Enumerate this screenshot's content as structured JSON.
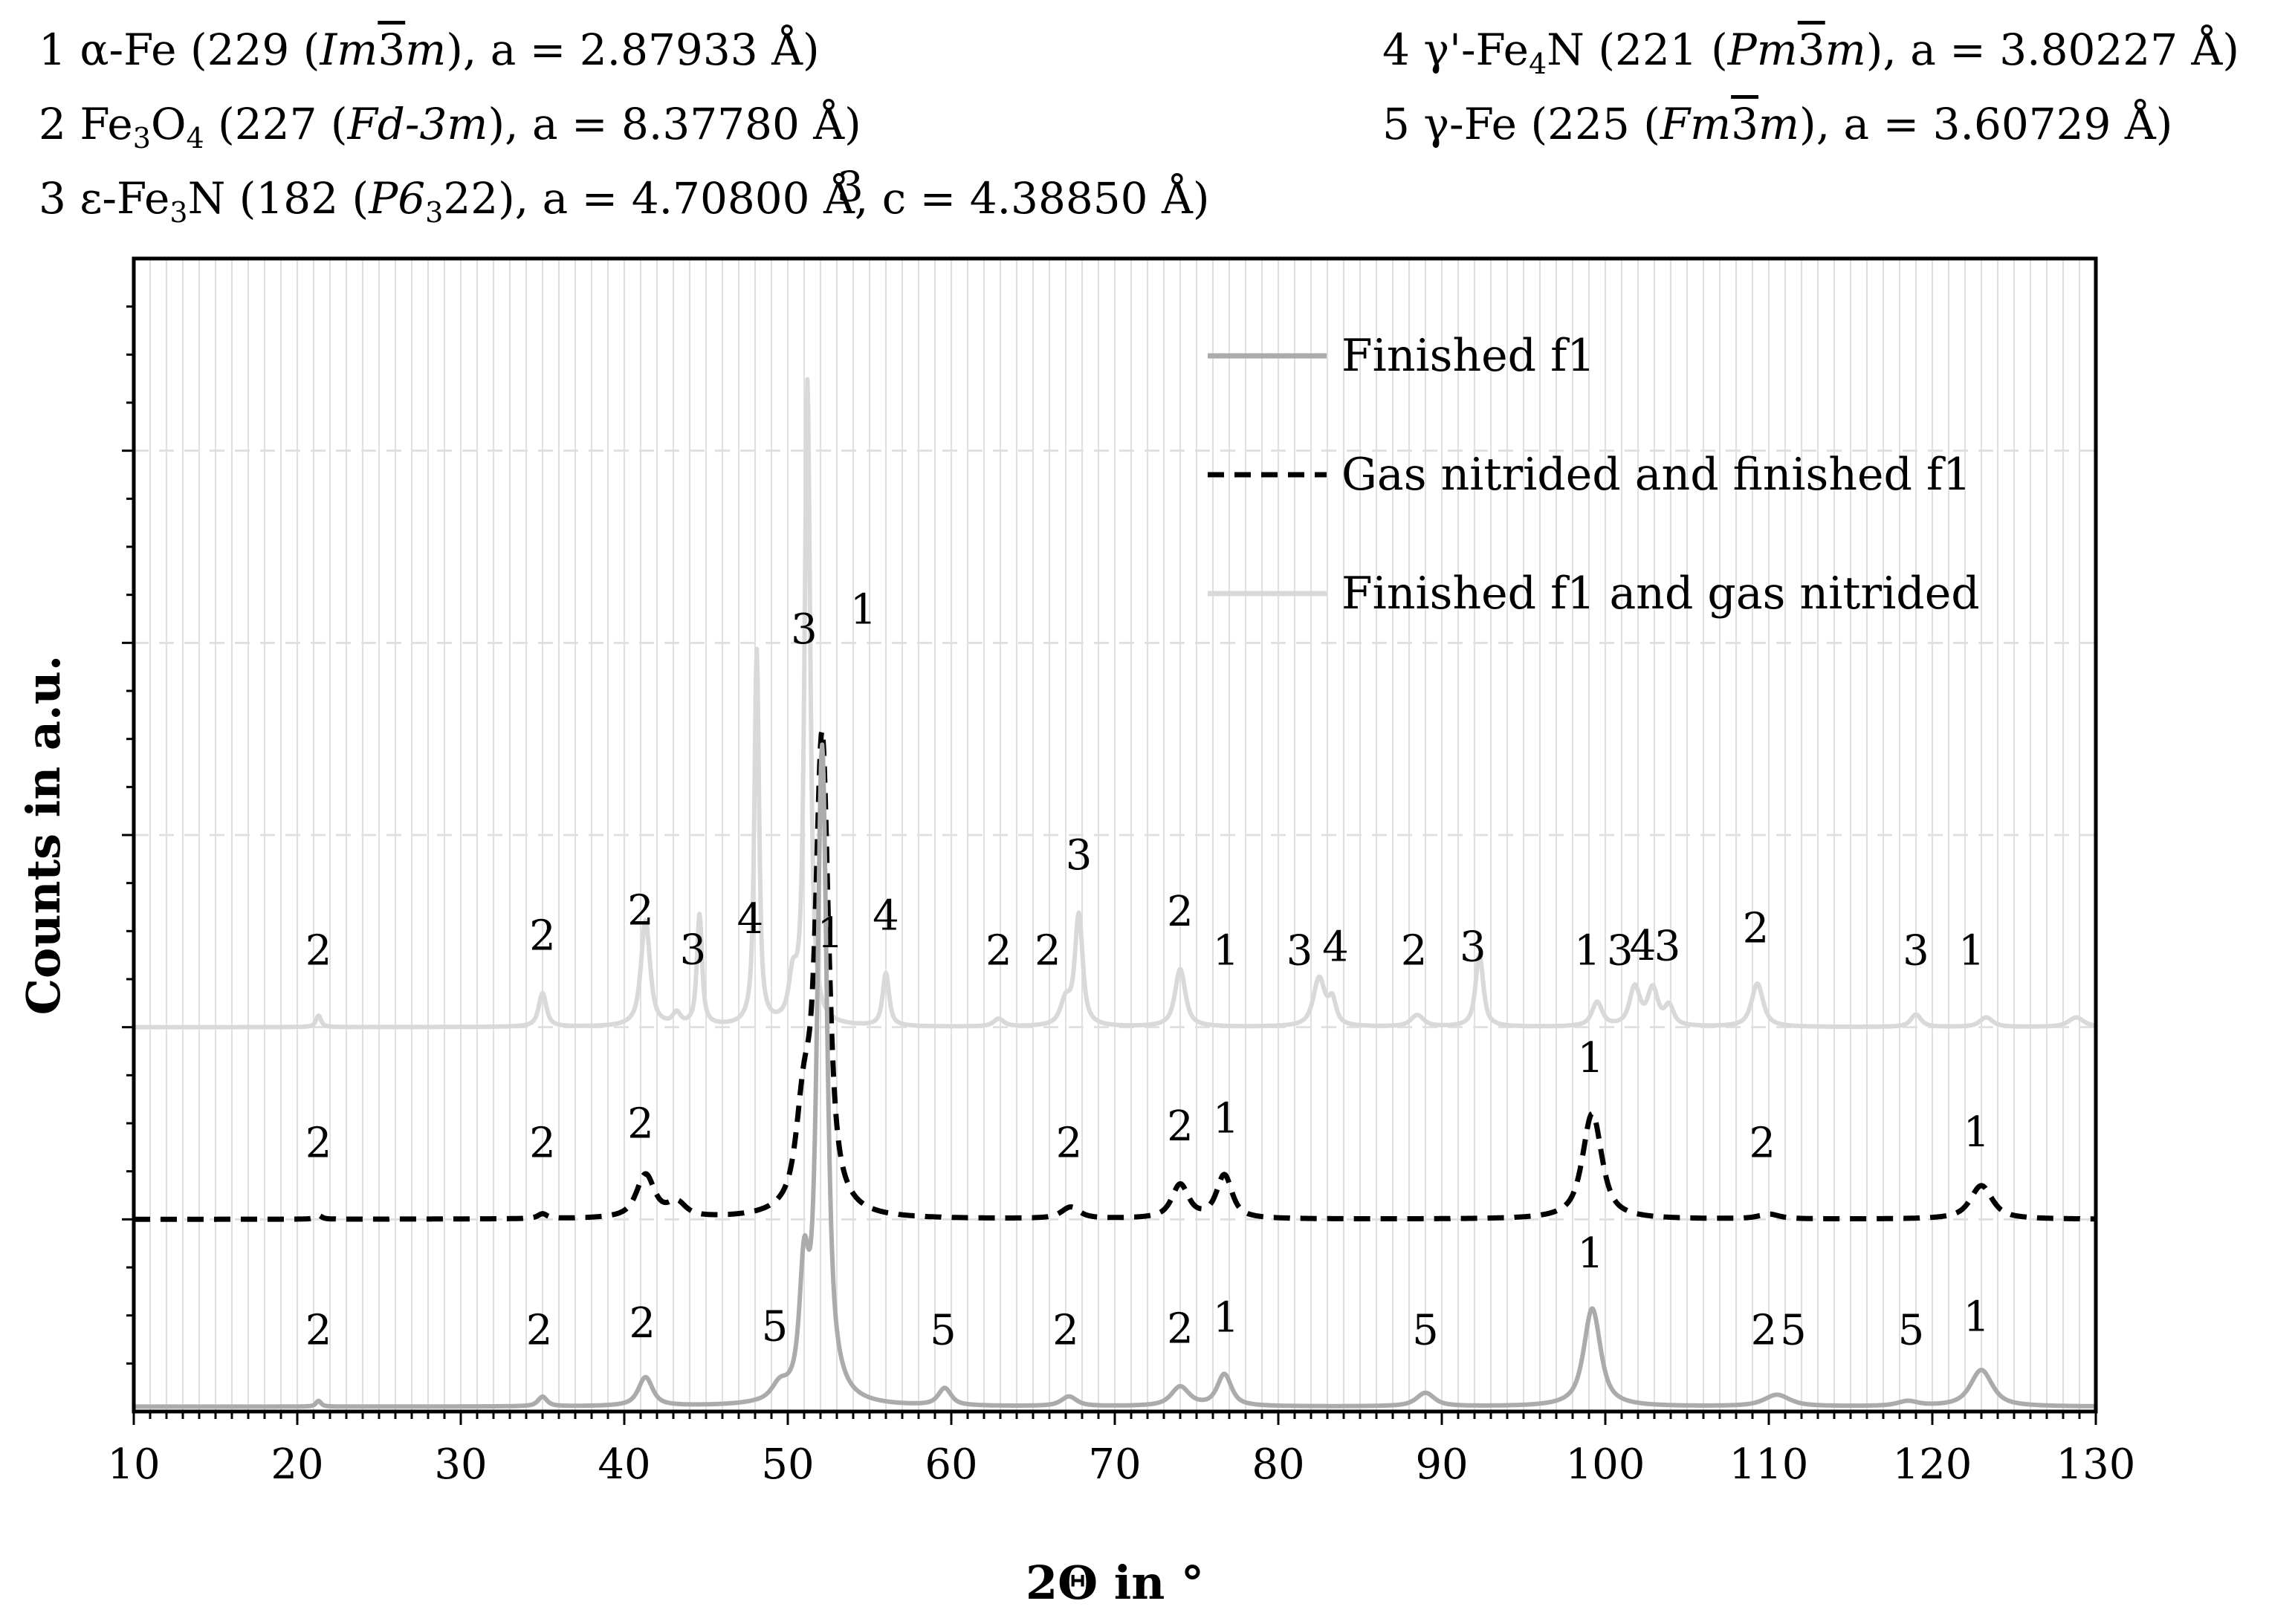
{
  "phases": [
    {
      "id": "1",
      "formula": "α-Fe",
      "sg_number": "229",
      "sg_a": "Im",
      "sg_bar": "3",
      "sg_b": "m",
      "params": ", a = 2.87933 Å)"
    },
    {
      "id": "2",
      "formula_main": "Fe",
      "sub1": "3",
      "mid": "O",
      "sub2": "4",
      "sg_number": "227",
      "sg": "Fd-3m",
      "params": ", a = 8.37780 Å)"
    },
    {
      "id": "3",
      "formula_main": "ε-Fe",
      "sub1": "3",
      "mid": "N",
      "sg_number": "182",
      "sg_a": "P6",
      "sg_sub": "3",
      "sg_b": "22",
      "params": ", a =  4.70800 Å, c = 4.38850 Å)"
    },
    {
      "id": "4",
      "formula_main": "γ'-Fe",
      "sub1": "4",
      "mid": "N",
      "sg_number": "221",
      "sg_a": "Pm",
      "sg_bar": "3",
      "sg_b": "m",
      "params": ", a = 3.80227 Å)"
    },
    {
      "id": "5",
      "formula": "γ-Fe",
      "sg_number": "225",
      "sg_a": "Fm",
      "sg_bar": "3",
      "sg_b": "m",
      "params": ", a = 3.60729 Å)"
    }
  ],
  "chart_data": {
    "type": "line",
    "title": "",
    "xlabel": "2Θ in °",
    "ylabel": "Counts in a.u.",
    "xlim": [
      10,
      130
    ],
    "ylim": [
      0,
      12
    ],
    "xticks": [
      10,
      20,
      30,
      40,
      50,
      60,
      70,
      80,
      90,
      100,
      110,
      120,
      130
    ],
    "legend_position": "top-right",
    "colors": {
      "finished": "#ababab",
      "gas_finished": "#000000",
      "finished_gas": "#d9d9d9",
      "grid": "#e0e0e0"
    },
    "series": [
      {
        "name": "Finished f1",
        "style": "solid",
        "baseline": 0.05,
        "peaks": [
          [
            21.3,
            0.06,
            0.2
          ],
          [
            35.0,
            0.1,
            0.35
          ],
          [
            41.3,
            0.3,
            0.55
          ],
          [
            49.5,
            0.15,
            0.6
          ],
          [
            51.0,
            1.2,
            0.35
          ],
          [
            52.1,
            6.8,
            0.38
          ],
          [
            59.6,
            0.18,
            0.5
          ],
          [
            67.2,
            0.1,
            0.6
          ],
          [
            74.0,
            0.2,
            0.7
          ],
          [
            76.7,
            0.33,
            0.55
          ],
          [
            89.0,
            0.14,
            0.7
          ],
          [
            99.2,
            1.02,
            0.65
          ],
          [
            110.5,
            0.12,
            1.0
          ],
          [
            118.5,
            0.05,
            0.8
          ],
          [
            123.0,
            0.38,
            0.85
          ]
        ],
        "labels": [
          [
            21.3,
            "2"
          ],
          [
            34.8,
            "2"
          ],
          [
            41.1,
            "2"
          ],
          [
            49.2,
            "5"
          ],
          [
            59.5,
            "5"
          ],
          [
            67.0,
            "2"
          ],
          [
            74.0,
            "2"
          ],
          [
            76.8,
            "1"
          ],
          [
            89.0,
            "5"
          ],
          [
            99.1,
            "1"
          ],
          [
            109.7,
            "2"
          ],
          [
            111.5,
            "5"
          ],
          [
            118.7,
            "5"
          ],
          [
            122.7,
            "1"
          ]
        ]
      },
      {
        "name": "Gas nitrided and finished f1",
        "style": "dashed",
        "baseline": 2.0,
        "peaks": [
          [
            21.3,
            0.04,
            0.25
          ],
          [
            35.0,
            0.05,
            0.35
          ],
          [
            41.3,
            0.45,
            0.7
          ],
          [
            43.2,
            0.15,
            0.7
          ],
          [
            51.0,
            1.0,
            0.6
          ],
          [
            52.1,
            4.9,
            0.5
          ],
          [
            67.3,
            0.12,
            0.7
          ],
          [
            74.0,
            0.35,
            0.65
          ],
          [
            76.7,
            0.45,
            0.6
          ],
          [
            99.2,
            1.1,
            0.75
          ],
          [
            110.0,
            0.05,
            0.8
          ],
          [
            123.0,
            0.35,
            0.85
          ]
        ],
        "labels": [
          [
            21.3,
            "2"
          ],
          [
            35.0,
            "2"
          ],
          [
            41.0,
            "2"
          ],
          [
            52.6,
            "1"
          ],
          [
            67.2,
            "2"
          ],
          [
            74.0,
            "2"
          ],
          [
            76.8,
            "1"
          ],
          [
            99.1,
            "1"
          ],
          [
            109.6,
            "2"
          ],
          [
            122.7,
            "1"
          ]
        ]
      },
      {
        "name": "Finished f1 and gas nitrided",
        "style": "solid",
        "baseline": 4.0,
        "peaks": [
          [
            21.3,
            0.12,
            0.2
          ],
          [
            35.0,
            0.35,
            0.3
          ],
          [
            41.3,
            1.1,
            0.35
          ],
          [
            43.2,
            0.12,
            0.3
          ],
          [
            44.6,
            1.15,
            0.2
          ],
          [
            48.1,
            3.9,
            0.18
          ],
          [
            50.3,
            0.4,
            0.3
          ],
          [
            51.2,
            6.7,
            0.22
          ],
          [
            56.0,
            0.55,
            0.25
          ],
          [
            62.9,
            0.08,
            0.4
          ],
          [
            67.0,
            0.25,
            0.4
          ],
          [
            67.8,
            1.15,
            0.3
          ],
          [
            74.0,
            0.6,
            0.4
          ],
          [
            82.5,
            0.5,
            0.45
          ],
          [
            83.3,
            0.25,
            0.3
          ],
          [
            88.5,
            0.12,
            0.5
          ],
          [
            92.3,
            0.75,
            0.3
          ],
          [
            99.5,
            0.25,
            0.4
          ],
          [
            101.8,
            0.4,
            0.4
          ],
          [
            102.9,
            0.38,
            0.4
          ],
          [
            103.9,
            0.2,
            0.35
          ],
          [
            109.3,
            0.45,
            0.45
          ],
          [
            119.0,
            0.13,
            0.4
          ],
          [
            123.3,
            0.1,
            0.5
          ],
          [
            128.8,
            0.1,
            0.6
          ]
        ],
        "labels": [
          [
            21.3,
            "2"
          ],
          [
            35.0,
            "2"
          ],
          [
            41.0,
            "2"
          ],
          [
            44.2,
            "3"
          ],
          [
            47.7,
            "4"
          ],
          [
            51.0,
            "3"
          ],
          [
            56.0,
            "4"
          ],
          [
            62.9,
            "2"
          ],
          [
            65.9,
            "2"
          ],
          [
            67.8,
            "3"
          ],
          [
            74.0,
            "2"
          ],
          [
            76.8,
            "1"
          ],
          [
            81.3,
            "3"
          ],
          [
            83.5,
            "4"
          ],
          [
            88.3,
            "2"
          ],
          [
            91.9,
            "3"
          ],
          [
            98.9,
            "1"
          ],
          [
            100.9,
            "3"
          ],
          [
            102.3,
            "4"
          ],
          [
            103.8,
            "3"
          ],
          [
            109.2,
            "2"
          ],
          [
            119.0,
            "3"
          ],
          [
            122.4,
            "1"
          ]
        ]
      }
    ],
    "top_labels": [
      [
        52.0,
        12.6,
        "3"
      ],
      [
        52.8,
        8.2,
        "1"
      ]
    ]
  }
}
